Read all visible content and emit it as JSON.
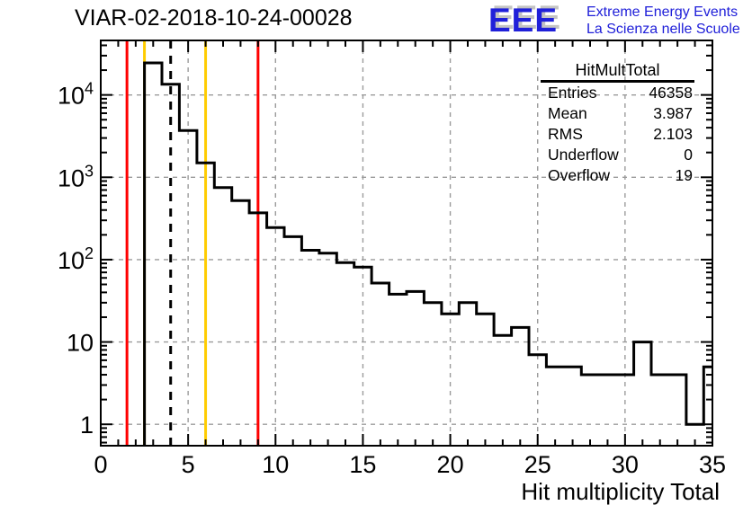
{
  "title": "VIAR-02-2018-10-24-00028",
  "logo": {
    "acronym": "EEE",
    "line1": "Extreme Energy Events",
    "line2": "La Scienza nelle Scuole",
    "color": "#2020d9"
  },
  "stats": {
    "title": "HitMultTotal",
    "rows": [
      [
        "Entries",
        "46358"
      ],
      [
        "Mean",
        "3.987"
      ],
      [
        "RMS",
        "2.103"
      ],
      [
        "Underflow",
        "0"
      ],
      [
        "Overflow",
        "19"
      ]
    ]
  },
  "chart_data": {
    "type": "bar",
    "style": "root-step-histogram",
    "title": "VIAR-02-2018-10-24-00028",
    "xlabel": "Hit multiplicity Total",
    "ylabel": "",
    "yscale": "log",
    "xlim": [
      0,
      35
    ],
    "ylim": [
      0.55,
      45900
    ],
    "grid": true,
    "x_grid": [
      5,
      10,
      15,
      20,
      25,
      30
    ],
    "y_grid": [
      1,
      10,
      100,
      1000,
      10000
    ],
    "x_major_ticks": [
      0,
      5,
      10,
      15,
      20,
      25,
      30,
      35
    ],
    "y_major_labels": [
      "1",
      "10",
      "10^2",
      "10^3",
      "10^4"
    ],
    "bins": {
      "width": 1,
      "centers": [
        3,
        4,
        5,
        6,
        7,
        8,
        9,
        10,
        11,
        12,
        13,
        14,
        15,
        16,
        17,
        18,
        19,
        20,
        21,
        22,
        23,
        24,
        25,
        26,
        27,
        28,
        29,
        30,
        31,
        32,
        33,
        34,
        35
      ],
      "counts": [
        24500,
        13500,
        3700,
        1500,
        750,
        520,
        370,
        245,
        190,
        130,
        120,
        92,
        81,
        52,
        38,
        41,
        30,
        22,
        30,
        22,
        12,
        15,
        7,
        5,
        5,
        4,
        4,
        4,
        10,
        4,
        4,
        1,
        5
      ]
    },
    "marker_lines": [
      {
        "x": 1.5,
        "color": "#ff0000",
        "style": "solid"
      },
      {
        "x": 2.5,
        "color": "#ffcc00",
        "style": "solid"
      },
      {
        "x": 4.0,
        "color": "#000000",
        "style": "dashed"
      },
      {
        "x": 6.0,
        "color": "#ffcc00",
        "style": "solid"
      },
      {
        "x": 9.0,
        "color": "#ff0000",
        "style": "solid"
      }
    ]
  }
}
